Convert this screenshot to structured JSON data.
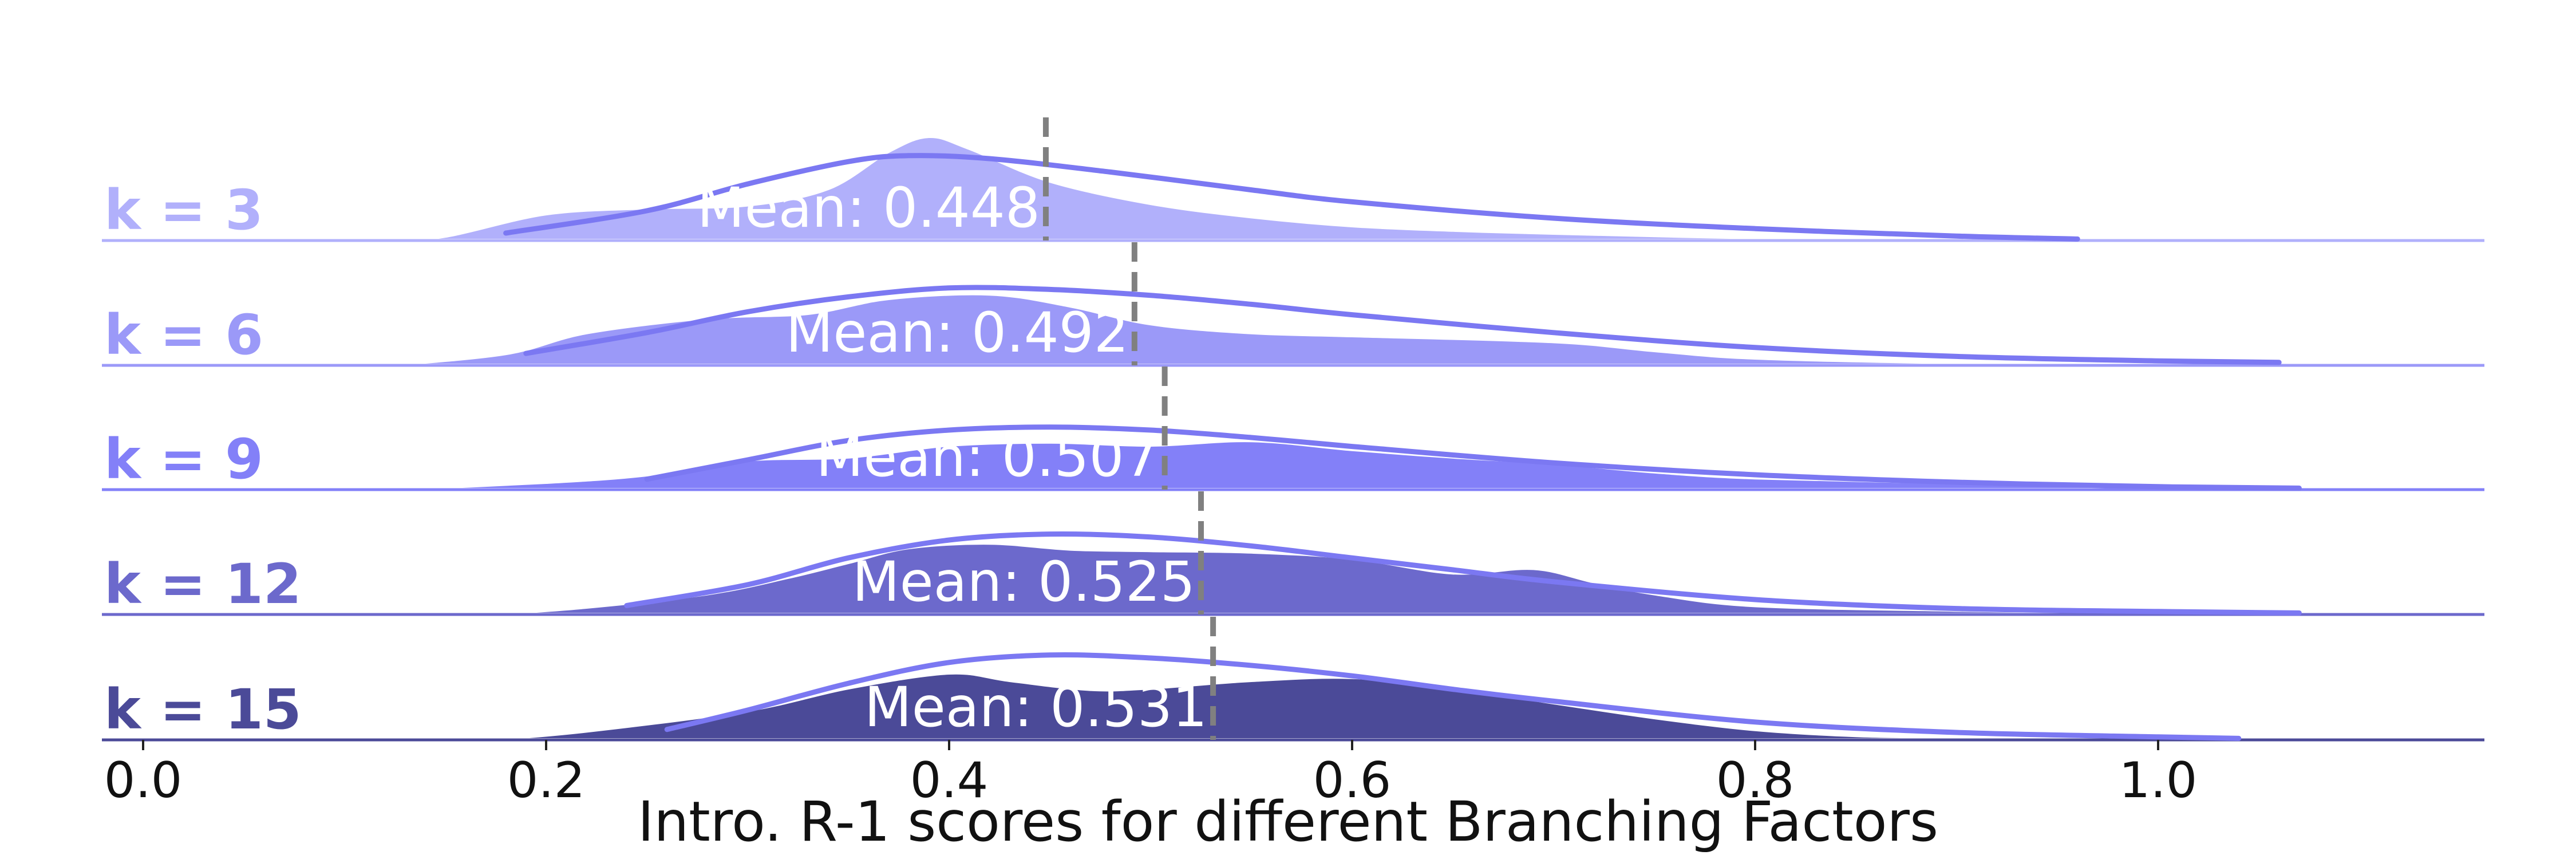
{
  "chart_data": {
    "type": "ridgeline",
    "xlabel": "Intro. R-1 scores for different Branching Factors",
    "xlim": [
      -0.02,
      1.12
    ],
    "xticks": [
      0.0,
      0.2,
      0.4,
      0.6,
      0.8,
      1.0
    ],
    "xtick_labels": [
      "0.0",
      "0.2",
      "0.4",
      "0.6",
      "0.8",
      "1.0"
    ],
    "fit_line_color": "#7b78f2",
    "mean_line_color": "#808080",
    "series": [
      {
        "name": "k = 3",
        "color": "#b1b0fb",
        "mean": 0.448,
        "mean_label": "Mean: 0.448",
        "density": [
          [
            0.12,
            0
          ],
          [
            0.15,
            0.03
          ],
          [
            0.2,
            0.18
          ],
          [
            0.25,
            0.22
          ],
          [
            0.3,
            0.24
          ],
          [
            0.34,
            0.35
          ],
          [
            0.37,
            0.6
          ],
          [
            0.39,
            0.7
          ],
          [
            0.41,
            0.62
          ],
          [
            0.45,
            0.4
          ],
          [
            0.5,
            0.25
          ],
          [
            0.55,
            0.16
          ],
          [
            0.6,
            0.1
          ],
          [
            0.65,
            0.07
          ],
          [
            0.7,
            0.05
          ],
          [
            0.8,
            0.02
          ],
          [
            0.9,
            0.01
          ],
          [
            0.95,
            0.0
          ]
        ],
        "fit_curve": [
          [
            0.18,
            0.05
          ],
          [
            0.25,
            0.2
          ],
          [
            0.3,
            0.38
          ],
          [
            0.35,
            0.53
          ],
          [
            0.38,
            0.57
          ],
          [
            0.42,
            0.55
          ],
          [
            0.48,
            0.46
          ],
          [
            0.55,
            0.34
          ],
          [
            0.6,
            0.26
          ],
          [
            0.7,
            0.15
          ],
          [
            0.8,
            0.08
          ],
          [
            0.9,
            0.03
          ],
          [
            0.96,
            0.01
          ]
        ]
      },
      {
        "name": "k = 6",
        "color": "#9b99f8",
        "mean": 0.492,
        "mean_label": "Mean: 0.492",
        "density": [
          [
            0.12,
            0
          ],
          [
            0.18,
            0.08
          ],
          [
            0.22,
            0.22
          ],
          [
            0.28,
            0.32
          ],
          [
            0.33,
            0.35
          ],
          [
            0.37,
            0.45
          ],
          [
            0.42,
            0.48
          ],
          [
            0.46,
            0.4
          ],
          [
            0.5,
            0.28
          ],
          [
            0.55,
            0.22
          ],
          [
            0.6,
            0.2
          ],
          [
            0.7,
            0.16
          ],
          [
            0.75,
            0.1
          ],
          [
            0.8,
            0.05
          ],
          [
            0.9,
            0.02
          ],
          [
            1.0,
            0.01
          ],
          [
            1.05,
            0.0
          ]
        ],
        "fit_curve": [
          [
            0.19,
            0.08
          ],
          [
            0.25,
            0.22
          ],
          [
            0.3,
            0.36
          ],
          [
            0.35,
            0.46
          ],
          [
            0.4,
            0.52
          ],
          [
            0.45,
            0.51
          ],
          [
            0.5,
            0.47
          ],
          [
            0.55,
            0.41
          ],
          [
            0.6,
            0.34
          ],
          [
            0.7,
            0.22
          ],
          [
            0.8,
            0.12
          ],
          [
            0.9,
            0.06
          ],
          [
            1.0,
            0.03
          ],
          [
            1.06,
            0.02
          ]
        ]
      },
      {
        "name": "k = 9",
        "color": "#8380f8",
        "mean": 0.507,
        "mean_label": "Mean: 0.507",
        "density": [
          [
            0.12,
            0
          ],
          [
            0.2,
            0.05
          ],
          [
            0.25,
            0.1
          ],
          [
            0.3,
            0.2
          ],
          [
            0.35,
            0.22
          ],
          [
            0.4,
            0.3
          ],
          [
            0.45,
            0.32
          ],
          [
            0.5,
            0.3
          ],
          [
            0.55,
            0.33
          ],
          [
            0.6,
            0.27
          ],
          [
            0.65,
            0.22
          ],
          [
            0.7,
            0.18
          ],
          [
            0.75,
            0.12
          ],
          [
            0.8,
            0.08
          ],
          [
            0.9,
            0.05
          ],
          [
            1.0,
            0.04
          ],
          [
            1.05,
            0.02
          ],
          [
            1.1,
            0.0
          ]
        ],
        "fit_curve": [
          [
            0.25,
            0.07
          ],
          [
            0.3,
            0.2
          ],
          [
            0.35,
            0.33
          ],
          [
            0.4,
            0.4
          ],
          [
            0.45,
            0.42
          ],
          [
            0.5,
            0.4
          ],
          [
            0.55,
            0.35
          ],
          [
            0.6,
            0.29
          ],
          [
            0.7,
            0.18
          ],
          [
            0.8,
            0.1
          ],
          [
            0.9,
            0.05
          ],
          [
            1.0,
            0.02
          ],
          [
            1.07,
            0.01
          ]
        ]
      },
      {
        "name": "k = 12",
        "color": "#6c69cc",
        "mean": 0.525,
        "mean_label": "Mean: 0.525",
        "density": [
          [
            0.17,
            0
          ],
          [
            0.22,
            0.05
          ],
          [
            0.28,
            0.14
          ],
          [
            0.32,
            0.25
          ],
          [
            0.35,
            0.35
          ],
          [
            0.38,
            0.45
          ],
          [
            0.42,
            0.48
          ],
          [
            0.46,
            0.44
          ],
          [
            0.5,
            0.43
          ],
          [
            0.55,
            0.42
          ],
          [
            0.6,
            0.38
          ],
          [
            0.65,
            0.28
          ],
          [
            0.69,
            0.31
          ],
          [
            0.72,
            0.22
          ],
          [
            0.75,
            0.14
          ],
          [
            0.8,
            0.06
          ],
          [
            0.9,
            0.03
          ],
          [
            0.95,
            0.02
          ],
          [
            1.0,
            0.01
          ],
          [
            1.05,
            0.0
          ]
        ],
        "fit_curve": [
          [
            0.24,
            0.06
          ],
          [
            0.3,
            0.2
          ],
          [
            0.35,
            0.38
          ],
          [
            0.4,
            0.5
          ],
          [
            0.45,
            0.54
          ],
          [
            0.5,
            0.52
          ],
          [
            0.55,
            0.46
          ],
          [
            0.6,
            0.38
          ],
          [
            0.65,
            0.3
          ],
          [
            0.7,
            0.22
          ],
          [
            0.8,
            0.1
          ],
          [
            0.9,
            0.04
          ],
          [
            1.0,
            0.02
          ],
          [
            1.07,
            0.01
          ]
        ]
      },
      {
        "name": "k = 15",
        "color": "#4b4a98",
        "mean": 0.531,
        "mean_label": "Mean: 0.531",
        "density": [
          [
            0.17,
            0
          ],
          [
            0.22,
            0.06
          ],
          [
            0.3,
            0.2
          ],
          [
            0.35,
            0.35
          ],
          [
            0.4,
            0.45
          ],
          [
            0.43,
            0.4
          ],
          [
            0.47,
            0.34
          ],
          [
            0.5,
            0.35
          ],
          [
            0.55,
            0.4
          ],
          [
            0.6,
            0.42
          ],
          [
            0.65,
            0.35
          ],
          [
            0.7,
            0.25
          ],
          [
            0.75,
            0.15
          ],
          [
            0.8,
            0.07
          ],
          [
            0.85,
            0.03
          ],
          [
            0.9,
            0.02
          ],
          [
            1.0,
            0.01
          ],
          [
            1.05,
            0.0
          ]
        ],
        "fit_curve": [
          [
            0.26,
            0.07
          ],
          [
            0.3,
            0.2
          ],
          [
            0.35,
            0.38
          ],
          [
            0.4,
            0.52
          ],
          [
            0.45,
            0.57
          ],
          [
            0.5,
            0.55
          ],
          [
            0.55,
            0.5
          ],
          [
            0.6,
            0.43
          ],
          [
            0.65,
            0.34
          ],
          [
            0.7,
            0.26
          ],
          [
            0.8,
            0.12
          ],
          [
            0.9,
            0.05
          ],
          [
            1.0,
            0.02
          ],
          [
            1.04,
            0.01
          ]
        ]
      }
    ]
  }
}
